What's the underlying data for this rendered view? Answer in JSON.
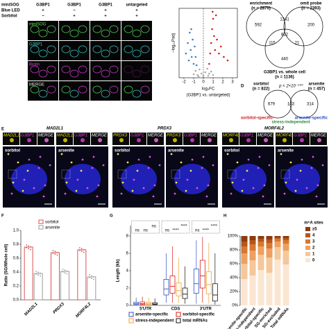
{
  "figure": {
    "panel_a": {
      "row_headers": [
        "miniSOG",
        "Blue LED",
        "Sorbitol"
      ],
      "columns": [
        {
          "label": "G3BP1",
          "signs": [
            "+",
            "−"
          ]
        },
        {
          "label": "G3BP1",
          "signs": [
            "−",
            "+"
          ]
        },
        {
          "label": "G3BP1",
          "signs": [
            "+",
            "+"
          ]
        },
        {
          "label": "untargeted",
          "signs": [
            "+",
            "+"
          ]
        }
      ],
      "channels": [
        "miniSOG",
        "G3BP1",
        "Biotin",
        "MERGE"
      ]
    },
    "panel_c": {
      "sets": [
        {
          "name": "enrichment",
          "n": "(n = 2870)"
        },
        {
          "name": "omit probe",
          "n": "(n = 2393)"
        },
        {
          "name": "G3BP1 vs. whole cell",
          "n": "(n = 1136)"
        }
      ],
      "counts": [
        592,
        1341,
        200,
        822,
        115,
        21,
        440
      ]
    },
    "panel_d": {
      "letter": "D",
      "left": {
        "name": "sorbitol",
        "n": "(n = 822)"
      },
      "right": {
        "name": "arsenite",
        "n": "(n = 457)"
      },
      "p": "p < 2×10⁻¹⁰⁰",
      "counts": [
        679,
        143,
        314
      ],
      "groups": [
        "sorbitol-specific",
        "stress-independent",
        "arsenite-specific"
      ]
    },
    "panel_e": {
      "letter": "E",
      "genes": [
        "MAD2L1",
        "PRDX3",
        "MORF4L2"
      ],
      "inset_labels": [
        "G3BP1",
        "MERGE"
      ],
      "conditions": [
        "sorbitol",
        "arsenite"
      ]
    },
    "letters": [
      "F",
      "G",
      "H"
    ]
  },
  "chart_data": [
    {
      "type": "scatter",
      "xlabel": "log₂FC",
      "xlabel2": "(G3BP1 vs. untargeted)",
      "ylabel": "−log₁₀Padj",
      "xlim": [
        -2.5,
        3.5
      ],
      "ylim": [
        0,
        10
      ],
      "xticks": [
        -2,
        -1,
        0,
        1,
        2,
        3
      ],
      "series": [
        {
          "color": "#3a7fc4",
          "x": [
            -1.8,
            -1.6,
            -1.5,
            -1.4,
            -1.3,
            -1.2,
            -1.1,
            -1.0,
            -0.9,
            -0.8,
            -0.7,
            -1.25
          ],
          "values": [
            3.5,
            5,
            2.5,
            6.5,
            4,
            3,
            5.5,
            2,
            4.5,
            3,
            1.8,
            7
          ]
        },
        {
          "color": "#d7191c",
          "x": [
            0.6,
            0.7,
            0.8,
            0.9,
            1.0,
            1.1,
            1.2,
            1.4,
            1.6,
            1.8,
            2.1,
            2.5,
            1.3,
            0.95
          ],
          "values": [
            2,
            3.5,
            5,
            7,
            8.5,
            6,
            4,
            5.5,
            3.5,
            4.5,
            3,
            2.5,
            9,
            9.5
          ]
        },
        {
          "color": "#aaaaaa",
          "x": [
            -1.0,
            -0.8,
            -0.6,
            -0.4,
            -0.2,
            0.0,
            0.2,
            0.4,
            0.6,
            0.8,
            1.0,
            -0.5,
            0.5
          ],
          "values": [
            0.5,
            1.0,
            0.4,
            1.2,
            0.6,
            0.3,
            0.8,
            1.3,
            0.6,
            0.9,
            0.4,
            0.2,
            0.3
          ]
        }
      ]
    },
    {
      "type": "bar",
      "ylabel": "Ratio (SG/Whole cell)",
      "categories": [
        "MAD2L1",
        "PRDX3",
        "MORF4L2"
      ],
      "series": [
        {
          "name": "sorbitol",
          "color": "#d9534f",
          "values": [
            0.76,
            0.68,
            0.72
          ]
        },
        {
          "name": "arsenite",
          "color": "#9a9a9a",
          "values": [
            0.38,
            0.41,
            0.33
          ]
        }
      ],
      "ylim": [
        0,
        1
      ],
      "yticks": [
        {
          "value": 0,
          "label": "0.0"
        },
        0.2,
        0.4,
        0.6,
        0.8,
        {
          "value": 1,
          "label": "1.0"
        }
      ]
    },
    {
      "type": "box",
      "ylabel": "Length (kb)",
      "categories": [
        "5'UTR",
        "CDS",
        "3'UTR"
      ],
      "ylim": [
        0,
        8
      ],
      "yticks": [
        0,
        2,
        4,
        6,
        8
      ],
      "annotations": [
        [
          "ns",
          "ns",
          "ns"
        ],
        [
          "ns",
          "****",
          "****"
        ],
        [
          "ns",
          "****",
          "****"
        ]
      ],
      "series": [
        {
          "name": "arsenite-specific",
          "color": "#2b4fc4",
          "values": [
            [
              0,
              0.1,
              0.2,
              0.35,
              0.9
            ],
            [
              0.3,
              1.2,
              1.9,
              3.0,
              6.0
            ],
            [
              0.2,
              1.4,
              2.5,
              4.2,
              7.5
            ]
          ]
        },
        {
          "name": "sorbitol-specific",
          "color": "#d7191c",
          "values": [
            [
              0,
              0.1,
              0.2,
              0.4,
              1.0
            ],
            [
              0.3,
              1.4,
              2.2,
              3.4,
              6.8
            ],
            [
              0.3,
              2.0,
              3.4,
              5.2,
              7.9
            ]
          ]
        },
        {
          "name": "stress-independent",
          "color": "#f0a030",
          "values": [
            [
              0,
              0.1,
              0.2,
              0.35,
              0.9
            ],
            [
              0.3,
              1.1,
              1.7,
              2.6,
              5.5
            ],
            [
              0.2,
              1.3,
              2.4,
              3.9,
              7.2
            ]
          ]
        },
        {
          "name": "total mRNAs",
          "color": "#111111",
          "values": [
            [
              0,
              0.1,
              0.15,
              0.3,
              0.8
            ],
            [
              0.2,
              0.8,
              1.3,
              2.0,
              4.5
            ],
            [
              0.1,
              0.5,
              1.2,
              2.5,
              6.0
            ]
          ]
        }
      ]
    },
    {
      "type": "stacked_bar",
      "legend_title": "m⁶A sites",
      "categories": [
        "arsenite-specific",
        "stress-independent",
        "sorbitol-specific",
        "SG-enriched",
        "SG-excluded",
        "Total mRNAs"
      ],
      "ylim": [
        0,
        100
      ],
      "yticks": [
        {
          "value": 0,
          "label": "0%"
        },
        {
          "value": 20,
          "label": "20%"
        },
        {
          "value": 40,
          "label": "40%"
        },
        {
          "value": 60,
          "label": "60%"
        },
        {
          "value": 80,
          "label": "80%"
        },
        {
          "value": 100,
          "label": "100%"
        }
      ],
      "series": [
        {
          "name": "0",
          "color": "#fbe6d2",
          "values": [
            38,
            43,
            51,
            47,
            66,
            59
          ]
        },
        {
          "name": "1",
          "color": "#f5c79a",
          "values": [
            22,
            22,
            22,
            22,
            18,
            20
          ]
        },
        {
          "name": "2",
          "color": "#eda060",
          "values": [
            15,
            14,
            12,
            13,
            8,
            10
          ]
        },
        {
          "name": "3",
          "color": "#d9772e",
          "values": [
            10,
            9,
            7,
            8,
            4,
            5
          ]
        },
        {
          "name": "4",
          "color": "#b5561b",
          "values": [
            7,
            6,
            4,
            5,
            2,
            3
          ]
        },
        {
          "name": "≥5",
          "color": "#8c3b0c",
          "values": [
            8,
            6,
            4,
            5,
            2,
            3
          ]
        }
      ]
    }
  ]
}
